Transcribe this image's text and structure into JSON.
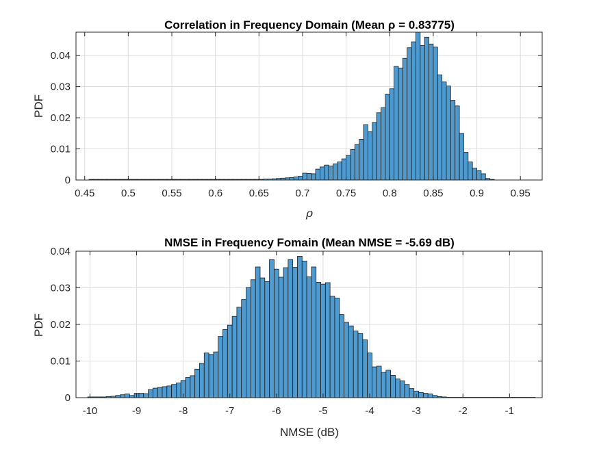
{
  "chart_data": [
    {
      "type": "bar",
      "title": "Correlation in Frequency Domain (Mean ρ = 0.83775)",
      "xlabel": "ρ",
      "ylabel": "PDF",
      "xlim": [
        0.44,
        0.975
      ],
      "ylim": [
        0,
        0.0475
      ],
      "xticks": [
        0.45,
        0.5,
        0.55,
        0.6,
        0.65,
        0.7,
        0.75,
        0.8,
        0.85,
        0.9,
        0.95
      ],
      "xtick_labels": [
        "0.45",
        "0.5",
        "0.55",
        "0.6",
        "0.65",
        "0.7",
        "0.75",
        "0.8",
        "0.85",
        "0.9",
        "0.95"
      ],
      "yticks": [
        0,
        0.01,
        0.02,
        0.03,
        0.04
      ],
      "ytick_labels": [
        "0",
        "0.01",
        "0.02",
        "0.03",
        "0.04"
      ],
      "grid": true,
      "bar_color": "#4f9bd0",
      "bin_start": 0.455,
      "bin_width": 0.005,
      "values": [
        0.0002,
        0.0002,
        0.0002,
        0.0002,
        0.0002,
        0.0002,
        0.0002,
        0.0002,
        0.0002,
        0.0002,
        0.0002,
        0.0002,
        0.0002,
        0.0002,
        0.0002,
        0.0002,
        0.0002,
        0.0002,
        0.0002,
        0.0002,
        0.0002,
        0.0002,
        0.0002,
        0.0002,
        0.0002,
        0.0002,
        0.0002,
        0.0002,
        0.0002,
        0.0002,
        0.0002,
        0.0002,
        0.0002,
        0.0002,
        0.0002,
        0.0002,
        0.0002,
        0.0002,
        0.0002,
        0.0002,
        0.0003,
        0.0003,
        0.0004,
        0.0005,
        0.0006,
        0.0007,
        0.0008,
        0.001,
        0.0012,
        0.0022,
        0.0021,
        0.002,
        0.0035,
        0.0042,
        0.0048,
        0.0045,
        0.0052,
        0.0058,
        0.0068,
        0.0079,
        0.0098,
        0.0114,
        0.0131,
        0.0178,
        0.0155,
        0.0185,
        0.0216,
        0.0232,
        0.0276,
        0.0293,
        0.0365,
        0.036,
        0.0391,
        0.0425,
        0.0444,
        0.0475,
        0.0432,
        0.0459,
        0.0437,
        0.0427,
        0.0338,
        0.0315,
        0.0302,
        0.0256,
        0.0238,
        0.015,
        0.0089,
        0.0058,
        0.0038,
        0.003,
        0.002,
        0.0005,
        0.0002
      ]
    },
    {
      "type": "bar",
      "title": "NMSE in Frequency Fomain (Mean NMSE = -5.69 dB)",
      "xlabel": "NMSE (dB)",
      "ylabel": "PDF",
      "xlim": [
        -10.3,
        -0.3
      ],
      "ylim": [
        0,
        0.04
      ],
      "xticks": [
        -10,
        -9,
        -8,
        -7,
        -6,
        -5,
        -4,
        -3,
        -2,
        -1
      ],
      "xtick_labels": [
        "-10",
        "-9",
        "-8",
        "-7",
        "-6",
        "-5",
        "-4",
        "-3",
        "-2",
        "-1"
      ],
      "yticks": [
        0,
        0.01,
        0.02,
        0.03,
        0.04
      ],
      "ytick_labels": [
        "0",
        "0.01",
        "0.02",
        "0.03",
        "0.04"
      ],
      "grid": true,
      "bar_color": "#4f9bd0",
      "bin_start": -10.05,
      "bin_width": 0.1,
      "values": [
        0.0002,
        0.0002,
        0.0002,
        0.0002,
        0.0003,
        0.0004,
        0.0006,
        0.0008,
        0.001,
        0.0006,
        0.0012,
        0.0012,
        0.0011,
        0.0022,
        0.0026,
        0.0028,
        0.003,
        0.0032,
        0.0036,
        0.004,
        0.0047,
        0.0055,
        0.006,
        0.0078,
        0.0094,
        0.0122,
        0.0118,
        0.0125,
        0.0167,
        0.0186,
        0.0198,
        0.0222,
        0.0247,
        0.0268,
        0.0301,
        0.0322,
        0.0357,
        0.0327,
        0.0317,
        0.0377,
        0.0351,
        0.0329,
        0.0355,
        0.0377,
        0.0356,
        0.0386,
        0.0373,
        0.033,
        0.0357,
        0.0315,
        0.031,
        0.0314,
        0.0277,
        0.0272,
        0.0227,
        0.0206,
        0.0196,
        0.0182,
        0.0175,
        0.0158,
        0.0122,
        0.0084,
        0.0086,
        0.0069,
        0.0075,
        0.0061,
        0.0051,
        0.0046,
        0.0036,
        0.0025,
        0.0018,
        0.0014,
        0.0012,
        0.001,
        0.0006,
        0.0003,
        0.0002,
        0.0001,
        0.0001,
        0.0001,
        0.0001,
        0.0001,
        0.0001,
        0.0001,
        0.0001,
        0.0001,
        0.0001,
        0.0001,
        0.0001,
        0.0001,
        0.0001,
        0.0001,
        0.0001,
        0.0001,
        0.0001,
        0.0001
      ]
    }
  ]
}
